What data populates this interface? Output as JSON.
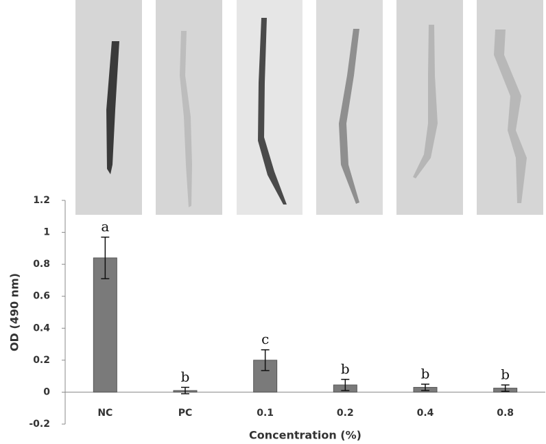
{
  "chart_data": {
    "type": "bar",
    "xlabel": "Concentration (%)",
    "ylabel": "OD (490 nm)",
    "categories": [
      "NC",
      "PC",
      "0.1",
      "0.2",
      "0.4",
      "0.8"
    ],
    "values": [
      0.84,
      0.01,
      0.2,
      0.045,
      0.03,
      0.025
    ],
    "errors": [
      0.13,
      0.02,
      0.065,
      0.035,
      0.02,
      0.02
    ],
    "annotations": [
      "a",
      "b",
      "c",
      "b",
      "b",
      "b"
    ],
    "color": "#7a7a7a",
    "ylim": [
      -0.2,
      1.2
    ],
    "yticks": [
      -0.2,
      0,
      0.2,
      0.4,
      0.6,
      0.8,
      1,
      1.2
    ]
  }
}
